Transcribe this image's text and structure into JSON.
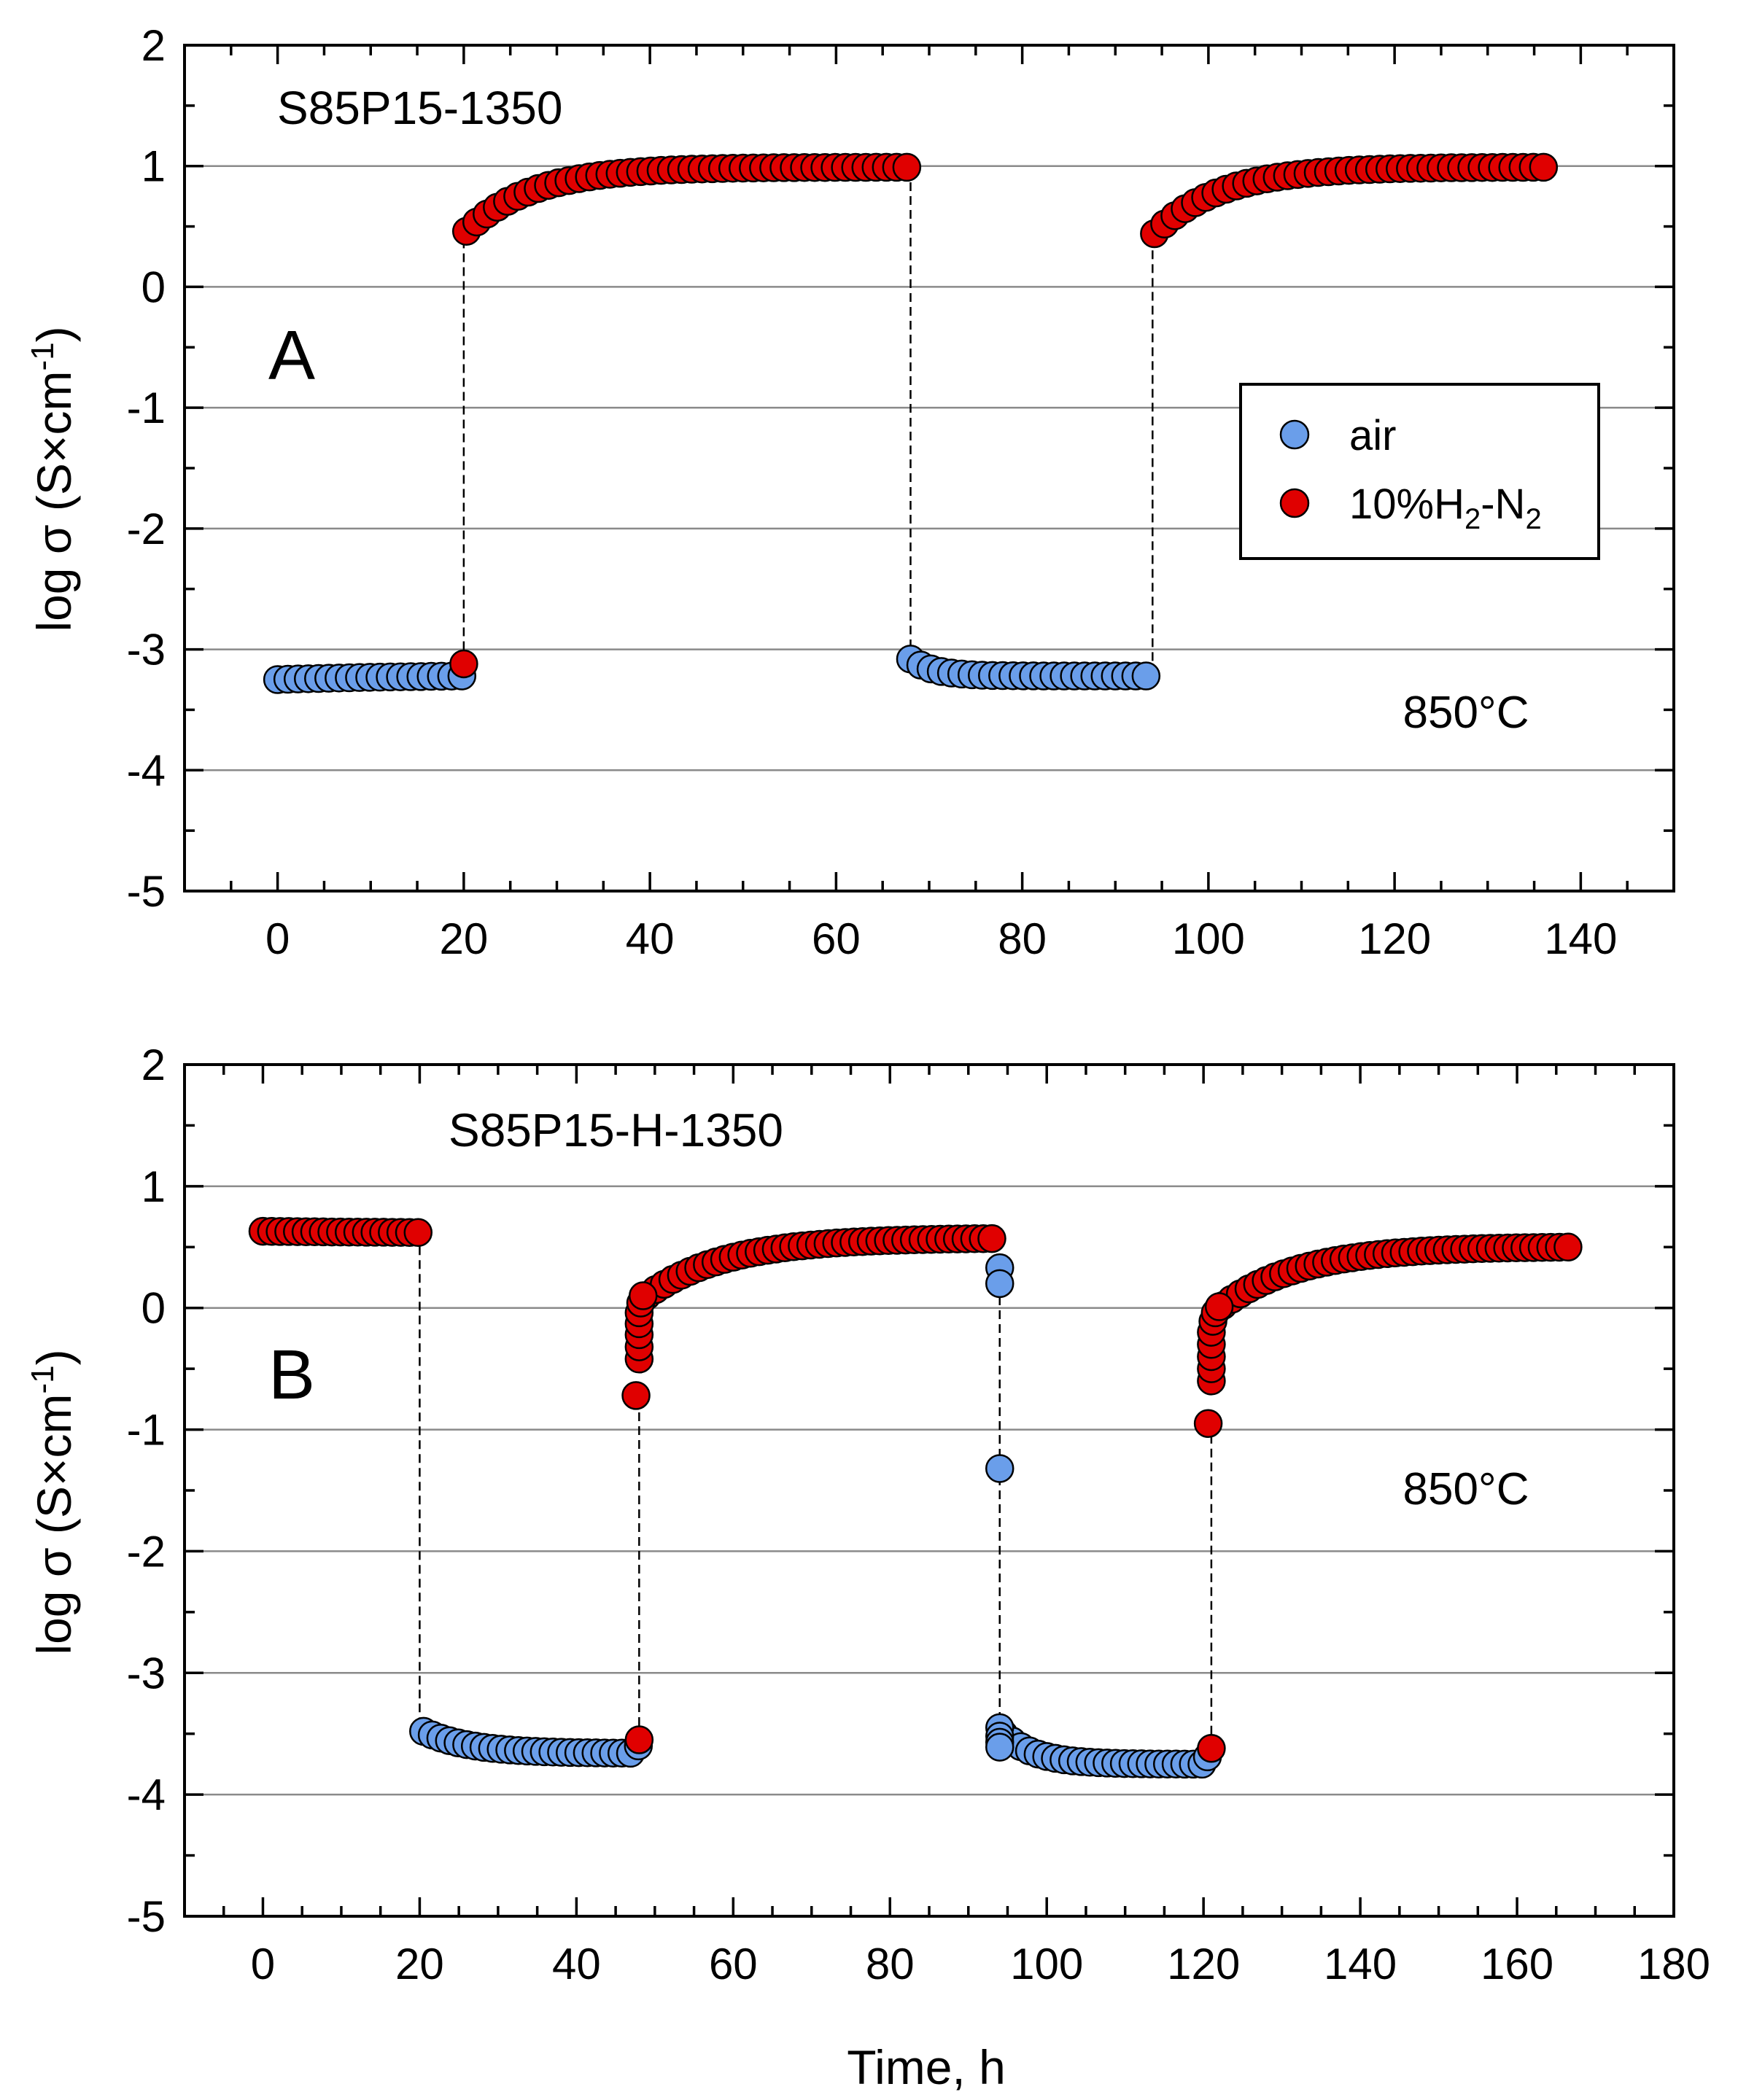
{
  "chart_data": [
    {
      "type": "scatter",
      "panel_letter": "A",
      "title": "S85P15-1350",
      "temperature_label": "850°C",
      "xlabel": "",
      "ylabel": "log σ (S×cm⁻¹)",
      "xlim": [
        -10,
        150
      ],
      "ylim": [
        -5,
        2
      ],
      "xticks": [
        0,
        20,
        40,
        60,
        80,
        100,
        120,
        140
      ],
      "yticks": [
        -5,
        -4,
        -3,
        -2,
        -1,
        0,
        1,
        2
      ],
      "gridlines_y": [
        -4,
        -3,
        -2,
        -1,
        0,
        1
      ],
      "legend": {
        "position": "right",
        "entries": [
          {
            "series": "air",
            "label": "air",
            "sub_parts": []
          },
          {
            "series": "h2n2",
            "label_parts": [
              "10%H",
              "2",
              "-N",
              "2"
            ]
          }
        ]
      },
      "switch_lines": [
        {
          "x": 20,
          "y_from": -3.12,
          "y_to": 0.46
        },
        {
          "x": 68,
          "y_from": 0.98,
          "y_to": -3.08
        },
        {
          "x": 94,
          "y_from": -3.21,
          "y_to": 0.44
        }
      ],
      "series": [
        {
          "name": "air",
          "color": "#6a9eea",
          "segments": [
            {
              "x0": 0,
              "x1": 20,
              "y_start": -3.25,
              "y_end": -3.22,
              "tau": 20,
              "step": 1.1
            },
            {
              "x0": 68,
              "x1": 94,
              "y_start": -3.08,
              "y_end": -3.22,
              "tau": 2.5,
              "step": 1.1
            }
          ],
          "points": []
        },
        {
          "name": "10%H2-N2",
          "color": "#e00000",
          "segments": [
            {
              "x0": 20.3,
              "x1": 68,
              "y_start": 0.46,
              "y_end": 0.99,
              "tau": 7,
              "step": 1.1
            },
            {
              "x0": 94.2,
              "x1": 136,
              "y_start": 0.44,
              "y_end": 0.99,
              "tau": 7,
              "step": 1.1
            }
          ],
          "points": [
            {
              "x": 20,
              "y": -3.12
            }
          ]
        }
      ]
    },
    {
      "type": "scatter",
      "panel_letter": "B",
      "title": "S85P15-H-1350",
      "temperature_label": "850°C",
      "xlabel": "Time, h",
      "ylabel": "log σ (S×cm⁻¹)",
      "xlim": [
        -10,
        180
      ],
      "ylim": [
        -5,
        2
      ],
      "xticks": [
        0,
        20,
        40,
        60,
        80,
        100,
        120,
        140,
        160,
        180
      ],
      "yticks": [
        -5,
        -4,
        -3,
        -2,
        -1,
        0,
        1,
        2
      ],
      "gridlines_y": [
        -4,
        -3,
        -2,
        -1,
        0,
        1
      ],
      "switch_lines": [
        {
          "x": 20,
          "y_from": 0.62,
          "y_to": -3.48
        },
        {
          "x": 48,
          "y_from": -3.55,
          "y_to": -0.72
        },
        {
          "x": 94,
          "y_from": 0.55,
          "y_to": -3.45
        },
        {
          "x": 121,
          "y_from": -3.62,
          "y_to": -0.95
        }
      ],
      "series": [
        {
          "name": "air",
          "color": "#6a9eea",
          "segments": [
            {
              "x0": 20.5,
              "x1": 47.5,
              "y_start": -3.48,
              "y_end": -3.66,
              "tau": 6,
              "step": 1.1
            },
            {
              "x0": 94.5,
              "x1": 120,
              "y_start": -3.5,
              "y_end": -3.75,
              "tau": 4,
              "step": 1.1
            }
          ],
          "points": [
            {
              "x": 94,
              "y": 0.33
            },
            {
              "x": 94,
              "y": 0.2
            },
            {
              "x": 94,
              "y": -1.32
            },
            {
              "x": 94,
              "y": -3.45
            },
            {
              "x": 94,
              "y": -3.52
            },
            {
              "x": 94,
              "y": -3.57
            },
            {
              "x": 94,
              "y": -3.61
            },
            {
              "x": 120.5,
              "y": -3.69
            },
            {
              "x": 47.9,
              "y": -3.6
            }
          ]
        },
        {
          "name": "10%H2-N2",
          "color": "#e00000",
          "segments": [
            {
              "x0": 0,
              "x1": 20,
              "y_start": 0.63,
              "y_end": 0.62,
              "tau": 20,
              "step": 1.1
            },
            {
              "x0": 49,
              "x1": 93,
              "y_start": 0.1,
              "y_end": 0.57,
              "tau": 10,
              "step": 1.1
            },
            {
              "x0": 122.5,
              "x1": 167,
              "y_start": 0.02,
              "y_end": 0.5,
              "tau": 10,
              "step": 1.1
            }
          ],
          "points": [
            {
              "x": 48,
              "y": -3.55
            },
            {
              "x": 47.6,
              "y": -0.72
            },
            {
              "x": 48,
              "y": -0.42
            },
            {
              "x": 48,
              "y": -0.32
            },
            {
              "x": 48,
              "y": -0.22
            },
            {
              "x": 48,
              "y": -0.13
            },
            {
              "x": 48,
              "y": -0.04
            },
            {
              "x": 48.2,
              "y": 0.04
            },
            {
              "x": 48.5,
              "y": 0.1
            },
            {
              "x": 121,
              "y": -3.62
            },
            {
              "x": 120.6,
              "y": -0.95
            },
            {
              "x": 121,
              "y": -0.6
            },
            {
              "x": 121,
              "y": -0.5
            },
            {
              "x": 121,
              "y": -0.4
            },
            {
              "x": 121,
              "y": -0.3
            },
            {
              "x": 121,
              "y": -0.2
            },
            {
              "x": 121.2,
              "y": -0.11
            },
            {
              "x": 121.5,
              "y": -0.04
            },
            {
              "x": 122,
              "y": 0.01
            }
          ]
        }
      ]
    }
  ]
}
